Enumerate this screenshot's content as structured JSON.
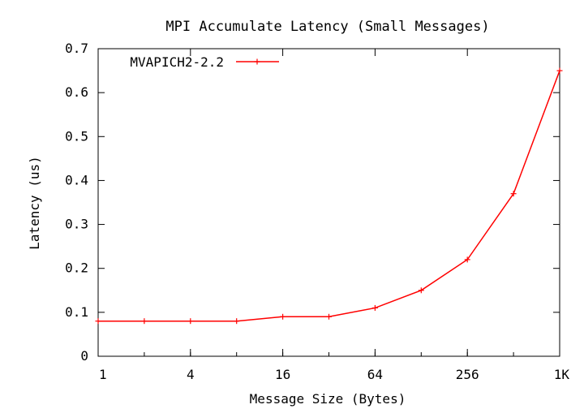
{
  "chart_data": {
    "type": "line",
    "title": "MPI Accumulate Latency (Small Messages)",
    "xlabel": "Message Size (Bytes)",
    "ylabel": "Latency (us)",
    "x_scale": "log2",
    "xlim": [
      1,
      1024
    ],
    "ylim": [
      0,
      0.7
    ],
    "x_ticks": [
      1,
      4,
      16,
      64,
      256,
      1024
    ],
    "x_tick_labels": [
      "1",
      "4",
      "16",
      "64",
      "256",
      "1K"
    ],
    "y_ticks": [
      0,
      0.1,
      0.2,
      0.3,
      0.4,
      0.5,
      0.6,
      0.7
    ],
    "y_tick_labels": [
      "0",
      "0.1",
      "0.2",
      "0.3",
      "0.4",
      "0.5",
      "0.6",
      "0.7"
    ],
    "grid": false,
    "legend_position": "top-left",
    "x": [
      1,
      2,
      4,
      8,
      16,
      32,
      64,
      128,
      256,
      512,
      1024
    ],
    "series": [
      {
        "name": "MVAPICH2-2.2",
        "color": "#ff0000",
        "marker": "plus",
        "values": [
          0.08,
          0.08,
          0.08,
          0.08,
          0.09,
          0.09,
          0.11,
          0.15,
          0.22,
          0.37,
          0.65
        ]
      }
    ]
  }
}
